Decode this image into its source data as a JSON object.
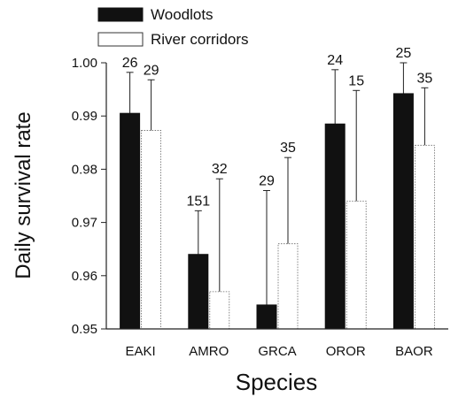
{
  "chart_data": {
    "type": "bar",
    "xlabel": "Species",
    "ylabel": "Daily survival rate",
    "ylim": [
      0.95,
      1.0
    ],
    "yticks": [
      "0.95",
      "0.96",
      "0.97",
      "0.98",
      "0.99",
      "1.00"
    ],
    "categories": [
      "EAKI",
      "AMRO",
      "GRCA",
      "OROR",
      "BAOR"
    ],
    "legend_position": "top-left",
    "series": [
      {
        "name": "Woodlots",
        "color": "#111111",
        "values": [
          0.9905,
          0.964,
          0.9545,
          0.9885,
          0.9942
        ],
        "error_upper": [
          0.9982,
          0.9722,
          0.976,
          0.9987,
          1.0
        ],
        "counts": [
          "26",
          "151",
          "29",
          "24",
          "25"
        ]
      },
      {
        "name": "River corridors",
        "color": "#ffffff",
        "values": [
          0.9873,
          0.957,
          0.966,
          0.974,
          0.9845
        ],
        "error_upper": [
          0.9968,
          0.9782,
          0.9822,
          0.9948,
          0.9953
        ],
        "counts": [
          "29",
          "32",
          "35",
          "15",
          "35"
        ]
      }
    ]
  }
}
